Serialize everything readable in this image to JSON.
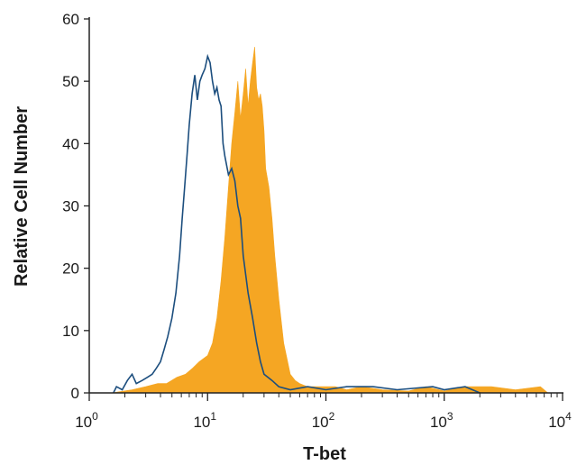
{
  "chart_data": {
    "type": "histogram",
    "title": "",
    "xlabel": "T-bet",
    "ylabel": "Relative Cell Number",
    "x_scale": "log",
    "xlim": [
      1,
      10000
    ],
    "ylim": [
      0,
      60
    ],
    "x_ticks": [
      {
        "value": 1,
        "base": "10",
        "exp": "0"
      },
      {
        "value": 10,
        "base": "10",
        "exp": "1"
      },
      {
        "value": 100,
        "base": "10",
        "exp": "2"
      },
      {
        "value": 1000,
        "base": "10",
        "exp": "3"
      },
      {
        "value": 10000,
        "base": "10",
        "exp": "4"
      }
    ],
    "y_ticks": [
      0,
      10,
      20,
      30,
      40,
      50,
      60
    ],
    "grid": false,
    "legend": "none",
    "series": [
      {
        "style": "filled",
        "color": "#F5A623",
        "points": [
          [
            1.55,
            0
          ],
          [
            2.3,
            0.5
          ],
          [
            3.0,
            1
          ],
          [
            3.8,
            1.5
          ],
          [
            4.5,
            1.5
          ],
          [
            5.5,
            2.5
          ],
          [
            6.5,
            3
          ],
          [
            7.5,
            4
          ],
          [
            8.5,
            5
          ],
          [
            10,
            6
          ],
          [
            11,
            8
          ],
          [
            12,
            12
          ],
          [
            13,
            18
          ],
          [
            14,
            25
          ],
          [
            15,
            33
          ],
          [
            16,
            40
          ],
          [
            17,
            45
          ],
          [
            18,
            50
          ],
          [
            19,
            44
          ],
          [
            20,
            48
          ],
          [
            21,
            52
          ],
          [
            22,
            46
          ],
          [
            23,
            50
          ],
          [
            24,
            53
          ],
          [
            25,
            55.5
          ],
          [
            26,
            49
          ],
          [
            27,
            47
          ],
          [
            28,
            48
          ],
          [
            29,
            46
          ],
          [
            30,
            42
          ],
          [
            31,
            36
          ],
          [
            33,
            33
          ],
          [
            35,
            28
          ],
          [
            37,
            22
          ],
          [
            40,
            15
          ],
          [
            44,
            8
          ],
          [
            50,
            3
          ],
          [
            55,
            2
          ],
          [
            60,
            1.5
          ],
          [
            70,
            1
          ],
          [
            90,
            1
          ],
          [
            120,
            1
          ],
          [
            150,
            0.5
          ],
          [
            200,
            1
          ],
          [
            300,
            0.5
          ],
          [
            500,
            0.3
          ],
          [
            700,
            1
          ],
          [
            1000,
            0.3
          ],
          [
            1500,
            1
          ],
          [
            2500,
            1
          ],
          [
            4000,
            0.5
          ],
          [
            6500,
            1
          ],
          [
            7500,
            0
          ]
        ]
      },
      {
        "style": "outline",
        "color": "#1C4E7E",
        "points": [
          [
            1.6,
            0
          ],
          [
            1.7,
            1
          ],
          [
            1.9,
            0.5
          ],
          [
            2.1,
            2
          ],
          [
            2.3,
            3
          ],
          [
            2.5,
            1.5
          ],
          [
            2.8,
            2
          ],
          [
            3.1,
            2.5
          ],
          [
            3.4,
            3
          ],
          [
            3.7,
            4
          ],
          [
            4.0,
            5
          ],
          [
            4.3,
            7
          ],
          [
            4.6,
            9
          ],
          [
            5.0,
            12
          ],
          [
            5.4,
            16
          ],
          [
            5.8,
            22
          ],
          [
            6.1,
            28
          ],
          [
            6.4,
            33
          ],
          [
            6.7,
            38
          ],
          [
            7.0,
            43
          ],
          [
            7.4,
            48
          ],
          [
            7.8,
            51
          ],
          [
            8.2,
            47
          ],
          [
            8.6,
            50
          ],
          [
            9.0,
            51
          ],
          [
            9.5,
            52
          ],
          [
            10.0,
            54
          ],
          [
            10.5,
            53
          ],
          [
            11,
            50
          ],
          [
            11.5,
            48
          ],
          [
            12,
            49
          ],
          [
            12.5,
            47
          ],
          [
            13,
            46
          ],
          [
            13.5,
            40
          ],
          [
            14,
            38
          ],
          [
            15,
            35
          ],
          [
            16,
            36
          ],
          [
            17,
            34
          ],
          [
            18,
            30
          ],
          [
            19,
            28
          ],
          [
            20,
            22
          ],
          [
            22,
            16
          ],
          [
            24,
            12
          ],
          [
            26,
            8
          ],
          [
            28,
            5
          ],
          [
            30,
            3
          ],
          [
            35,
            2
          ],
          [
            40,
            1
          ],
          [
            50,
            0.5
          ],
          [
            70,
            1
          ],
          [
            100,
            0.5
          ],
          [
            150,
            1
          ],
          [
            250,
            1
          ],
          [
            400,
            0.5
          ],
          [
            800,
            1
          ],
          [
            1000,
            0.5
          ],
          [
            1500,
            1
          ],
          [
            2000,
            0
          ]
        ]
      }
    ]
  }
}
